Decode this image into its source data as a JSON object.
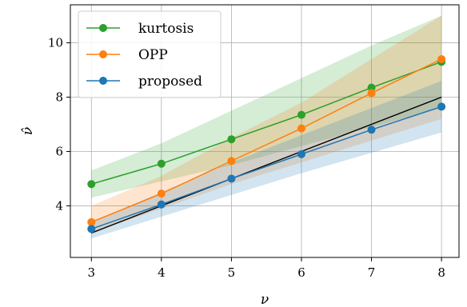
{
  "chart_data": {
    "type": "line",
    "x": [
      3,
      4,
      5,
      6,
      7,
      8
    ],
    "xlabel": "ν",
    "ylabel": "ν̂",
    "xlim": [
      2.7,
      8.25
    ],
    "ylim": [
      2.1,
      11.4
    ],
    "xticks": [
      3,
      4,
      5,
      6,
      7,
      8
    ],
    "yticks": [
      4,
      6,
      8,
      10
    ],
    "grid": true,
    "legend_position": "top-left",
    "reference_line": {
      "x": [
        3,
        8
      ],
      "y": [
        3,
        8
      ],
      "color": "#000000"
    },
    "series": [
      {
        "name": "kurtosis",
        "color": "#2ca02c",
        "values": [
          4.8,
          5.55,
          6.45,
          7.35,
          8.35,
          9.3
        ],
        "lower": [
          4.3,
          4.9,
          5.5,
          6.2,
          6.9,
          7.6
        ],
        "upper": [
          5.3,
          6.3,
          7.5,
          8.7,
          9.9,
          11.0
        ]
      },
      {
        "name": "OPP",
        "color": "#ff7f0e",
        "values": [
          3.4,
          4.45,
          5.65,
          6.85,
          8.15,
          9.4
        ],
        "lower": [
          3.0,
          3.9,
          4.8,
          5.6,
          6.4,
          7.2
        ],
        "upper": [
          4.0,
          5.1,
          6.5,
          7.8,
          9.4,
          11.0
        ]
      },
      {
        "name": "proposed",
        "color": "#1f77b4",
        "values": [
          3.15,
          4.05,
          5.0,
          5.9,
          6.8,
          7.65
        ],
        "lower": [
          2.8,
          3.6,
          4.4,
          5.2,
          5.95,
          6.7
        ],
        "upper": [
          3.4,
          4.5,
          5.6,
          6.6,
          7.6,
          8.6
        ]
      }
    ]
  }
}
